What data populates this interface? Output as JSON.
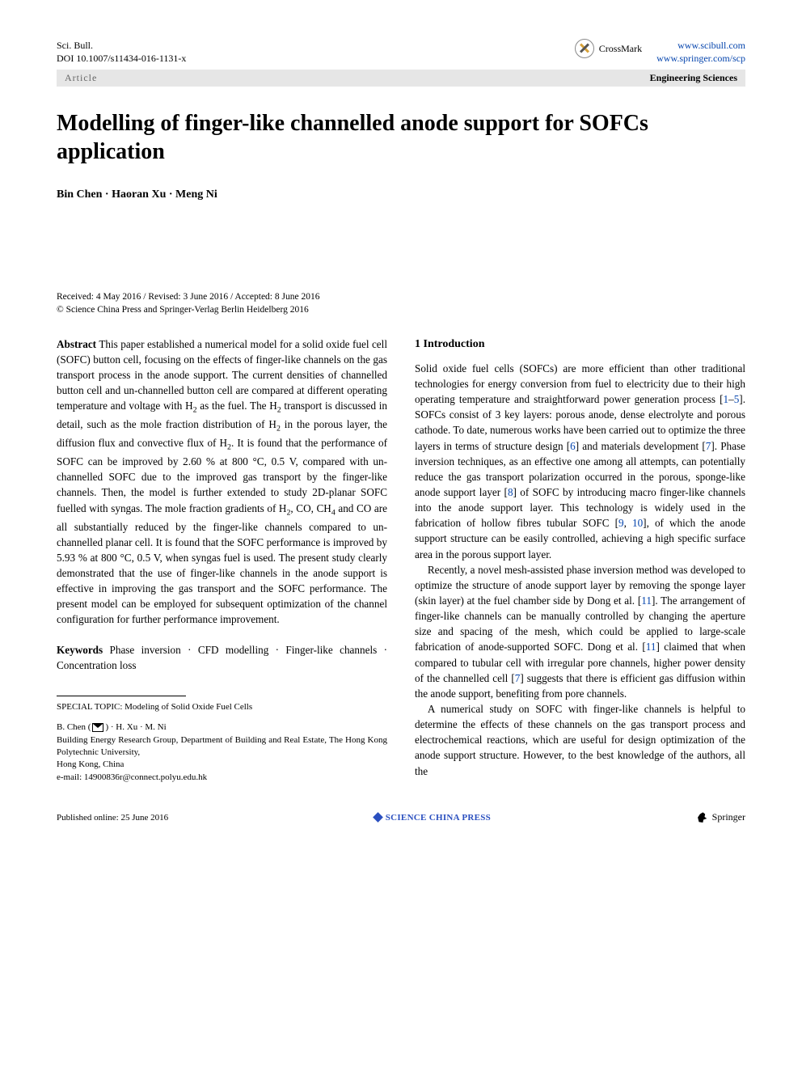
{
  "header": {
    "journal_abbrev": "Sci. Bull.",
    "doi": "DOI 10.1007/s11434-016-1131-x",
    "crossmark_label": "CrossMark",
    "url1": "www.scibull.com",
    "url2": "www.springer.com/scp"
  },
  "metabar": {
    "left": "Article",
    "right": "Engineering Sciences"
  },
  "title": "Modelling of finger-like channelled anode support for SOFCs application",
  "authors": "Bin Chen · Haoran Xu · Meng Ni",
  "dates": {
    "line1": "Received: 4 May 2016 / Revised: 3 June 2016 / Accepted: 8 June 2016",
    "line2": "© Science China Press and Springer-Verlag Berlin Heidelberg 2016"
  },
  "abstract": {
    "label": "Abstract",
    "text_parts": {
      "p1a": "This paper established a numerical model for a solid oxide fuel cell (SOFC) button cell, focusing on the effects of finger-like channels on the gas transport process in the anode support. The current densities of channelled button cell and un-channelled button cell are compared at different operating temperature and voltage with H",
      "p1b": " as the fuel. The H",
      "p1c": " transport is discussed in detail, such as the mole fraction distribution of H",
      "p1d": " in the porous layer, the diffusion flux and convective flux of H",
      "p1e": ". It is found that the performance of SOFC can be improved by 2.60 % at 800 °C, 0.5 V, compared with un-channelled SOFC due to the improved gas transport by the finger-like channels. Then, the model is further extended to study 2D-planar SOFC fuelled with syngas. The mole fraction gradients of H",
      "p1f": ", CO, CH",
      "p1g": " and CO are all substantially reduced by the finger-like channels compared to un-channelled planar cell. It is found that the SOFC performance is improved by 5.93 % at 800 °C, 0.5 V, when syngas fuel is used. The present study clearly demonstrated that the use of finger-like channels in the anode support is effective in improving the gas transport and the SOFC performance. The present model can be employed for subsequent optimization of the channel configuration for further performance improvement."
    }
  },
  "keywords": {
    "label": "Keywords",
    "text": "Phase inversion · CFD modelling · Finger-like channels · Concentration loss"
  },
  "intro": {
    "heading": "1 Introduction",
    "p1a": "Solid oxide fuel cells (SOFCs) are more efficient than other traditional technologies for energy conversion from fuel to electricity due to their high operating temperature and straightforward power generation process [",
    "c1": "1",
    "dash1": "–",
    "c5": "5",
    "p1b": "]. SOFCs consist of 3 key layers: porous anode, dense electrolyte and porous cathode. To date, numerous works have been carried out to optimize the three layers in terms of structure design [",
    "c6": "6",
    "p1c": "] and materials development [",
    "c7": "7",
    "p1d": "]. Phase inversion techniques, as an effective one among all attempts, can potentially reduce the gas transport polarization occurred in the porous, sponge-like anode support layer [",
    "c8": "8",
    "p1e": "] of SOFC by introducing macro finger-like channels into the anode support layer. This technology is widely used in the fabrication of hollow fibres tubular SOFC [",
    "c9": "9",
    "comma1": ", ",
    "c10": "10",
    "p1f": "], of which the anode support structure can be easily controlled, achieving a high specific surface area in the porous support layer.",
    "p2a": "Recently, a novel mesh-assisted phase inversion method was developed to optimize the structure of anode support layer by removing the sponge layer (skin layer) at the fuel chamber side by Dong et al. [",
    "c11a": "11",
    "p2b": "]. The arrangement of finger-like channels can be manually controlled by changing the aperture size and spacing of the mesh, which could be applied to large-scale fabrication of anode-supported SOFC. Dong et al. [",
    "c11b": "11",
    "p2c": "] claimed that when compared to tubular cell with irregular pore channels, higher power density of the channelled cell [",
    "c7b": "7",
    "p2d": "] suggests that there is efficient gas diffusion within the anode support, benefiting from pore channels.",
    "p3": "A numerical study on SOFC with finger-like channels is helpful to determine the effects of these channels on the gas transport process and electrochemical reactions, which are useful for design optimization of the anode support structure. However, to the best knowledge of the authors, all the"
  },
  "footblock": {
    "topic": "SPECIAL TOPIC: Modeling of Solid Oxide Fuel Cells",
    "auth_line": "B. Chen (      ) · H. Xu · M. Ni",
    "affil1": "Building Energy Research Group, Department of Building and Real Estate, The Hong Kong Polytechnic University,",
    "affil2": "Hong Kong, China",
    "email": "e-mail: 14900836r@connect.polyu.edu.hk"
  },
  "footer": {
    "published": "Published online: 25 June 2016",
    "scp": "SCIENCE CHINA PRESS",
    "springer": "Springer"
  },
  "colors": {
    "link": "#0645ad",
    "metabar_bg": "#e6e6e6",
    "metabar_text": "#666666",
    "scp_blue": "#2a4fbf"
  }
}
